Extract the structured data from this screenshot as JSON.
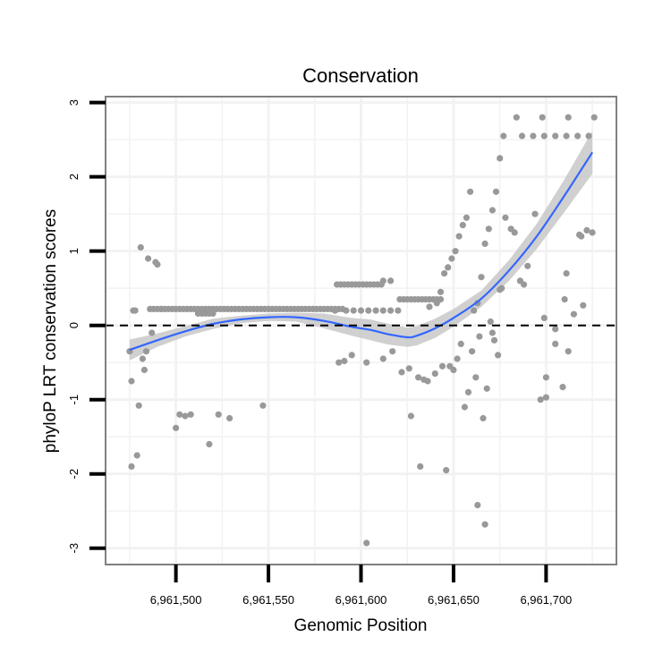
{
  "chart_data": {
    "type": "scatter",
    "title": "Conservation",
    "xlabel": "Genomic Position",
    "ylabel": "phyloP LRT conservation scores",
    "xlim": [
      6961462,
      6961738
    ],
    "ylim": [
      -3.22,
      3.08
    ],
    "x_ticks": [
      6961500,
      6961550,
      6961600,
      6961650,
      6961700
    ],
    "x_tick_labels": [
      "6,961,500",
      "6,961,550",
      "6,961,600",
      "6,961,650",
      "6,961,700"
    ],
    "y_ticks": [
      -3,
      -2,
      -1,
      0,
      1,
      2,
      3
    ],
    "y_tick_labels": [
      "-3",
      "-2",
      "-1",
      "0",
      "1",
      "2",
      "3"
    ],
    "reference_line": {
      "y": 0,
      "style": "dashed"
    },
    "grid": true,
    "colors": {
      "points": "#999999",
      "smooth_line": "#3366ff",
      "confidence_band": "#c8c8c8",
      "panel_border": "#808080",
      "grid": "#f2f2f2",
      "reference_line": "#000000"
    },
    "smooth_fit": {
      "x": [
        6961475,
        6961490,
        6961505,
        6961520,
        6961535,
        6961550,
        6961565,
        6961580,
        6961595,
        6961605,
        6961615,
        6961625,
        6961630,
        6961640,
        6961650,
        6961665,
        6961680,
        6961695,
        6961710,
        6961725
      ],
      "y": [
        -0.33,
        -0.2,
        -0.08,
        0.02,
        0.08,
        0.11,
        0.11,
        0.06,
        -0.02,
        -0.06,
        -0.12,
        -0.16,
        -0.14,
        -0.04,
        0.1,
        0.36,
        0.74,
        1.2,
        1.75,
        2.33
      ],
      "lower": [
        -0.47,
        -0.29,
        -0.15,
        -0.05,
        0.03,
        0.06,
        0.05,
        -0.04,
        -0.14,
        -0.2,
        -0.26,
        -0.29,
        -0.27,
        -0.17,
        -0.02,
        0.25,
        0.6,
        1.03,
        1.53,
        2.04
      ],
      "upper": [
        -0.19,
        -0.11,
        -0.01,
        0.09,
        0.13,
        0.16,
        0.17,
        0.16,
        0.1,
        0.08,
        0.02,
        -0.03,
        -0.01,
        0.09,
        0.22,
        0.47,
        0.88,
        1.37,
        1.97,
        2.62
      ]
    },
    "points": {
      "x": [
        6961475,
        6961476,
        6961477,
        6961479,
        6961481,
        6961482,
        6961483,
        6961485,
        6961487,
        6961489,
        6961490,
        6961492,
        6961476,
        6961478,
        6961480,
        6961484,
        6961486,
        6961488,
        6961490,
        6961492,
        6961494,
        6961496,
        6961498,
        6961500,
        6961502,
        6961504,
        6961506,
        6961508,
        6961510,
        6961512,
        6961514,
        6961516,
        6961518,
        6961520,
        6961522,
        6961524,
        6961526,
        6961528,
        6961530,
        6961532,
        6961534,
        6961536,
        6961538,
        6961540,
        6961542,
        6961544,
        6961546,
        6961548,
        6961550,
        6961552,
        6961554,
        6961556,
        6961558,
        6961560,
        6961562,
        6961564,
        6961566,
        6961568,
        6961570,
        6961572,
        6961574,
        6961576,
        6961578,
        6961580,
        6961582,
        6961584,
        6961586,
        6961588,
        6961590,
        6961512,
        6961514,
        6961516,
        6961518,
        6961520,
        6961500,
        6961502,
        6961505,
        6961508,
        6961518,
        6961523,
        6961529,
        6961547,
        6961587,
        6961589,
        6961591,
        6961593,
        6961595,
        6961597,
        6961599,
        6961601,
        6961603,
        6961605,
        6961607,
        6961609,
        6961611,
        6961612,
        6961616,
        6961621,
        6961623,
        6961625,
        6961627,
        6961629,
        6961631,
        6961633,
        6961635,
        6961637,
        6961639,
        6961641,
        6961643,
        6961586,
        6961592,
        6961596,
        6961600,
        6961604,
        6961608,
        6961612,
        6961616,
        6961620,
        6961588,
        6961591,
        6961595,
        6961603,
        6961612,
        6961617,
        6961622,
        6961626,
        6961631,
        6961634,
        6961636,
        6961640,
        6961644,
        6961632,
        6961627,
        6961646,
        6961603,
        6961637,
        6961641,
        6961643,
        6961645,
        6961647,
        6961649,
        6961651,
        6961653,
        6961655,
        6961657,
        6961659,
        6961661,
        6961663,
        6961665,
        6961667,
        6961669,
        6961671,
        6961673,
        6961675,
        6961648,
        6961650,
        6961652,
        6961654,
        6961656,
        6961658,
        6961660,
        6961662,
        6961664,
        6961666,
        6961668,
        6961670,
        6961672,
        6961674,
        6961663,
        6961667,
        6961671,
        6961676,
        6961678,
        6961681,
        6961683,
        6961686,
        6961688,
        6961694,
        6961699,
        6961705,
        6961711,
        6961718,
        6961697,
        6961700,
        6961705,
        6961709,
        6961712,
        6961715,
        6961719,
        6961722,
        6961675,
        6961690,
        6961700,
        6961710,
        6961720,
        6961725,
        6961677,
        6961687,
        6961693,
        6961699,
        6961705,
        6961711,
        6961717,
        6961723,
        6961684,
        6961698,
        6961712,
        6961726
      ],
      "y": [
        -0.35,
        -0.75,
        0.2,
        -1.75,
        1.05,
        -0.45,
        -0.6,
        0.9,
        -0.1,
        0.85,
        0.82,
        0.22,
        -1.9,
        0.2,
        -1.08,
        -0.35,
        0.22,
        0.22,
        0.22,
        0.22,
        0.22,
        0.22,
        0.22,
        0.22,
        0.22,
        0.22,
        0.22,
        0.22,
        0.22,
        0.22,
        0.22,
        0.22,
        0.22,
        0.22,
        0.22,
        0.22,
        0.22,
        0.22,
        0.22,
        0.22,
        0.22,
        0.22,
        0.22,
        0.22,
        0.22,
        0.22,
        0.22,
        0.22,
        0.22,
        0.22,
        0.22,
        0.22,
        0.22,
        0.22,
        0.22,
        0.22,
        0.22,
        0.22,
        0.22,
        0.22,
        0.22,
        0.22,
        0.22,
        0.22,
        0.22,
        0.22,
        0.22,
        0.22,
        0.22,
        0.16,
        0.16,
        0.16,
        0.16,
        0.16,
        -1.38,
        -1.2,
        -1.22,
        -1.2,
        -1.6,
        -1.2,
        -1.25,
        -1.08,
        0.55,
        0.55,
        0.55,
        0.55,
        0.55,
        0.55,
        0.55,
        0.55,
        0.55,
        0.55,
        0.55,
        0.55,
        0.55,
        0.6,
        0.6,
        0.35,
        0.35,
        0.35,
        0.35,
        0.35,
        0.35,
        0.35,
        0.35,
        0.35,
        0.35,
        0.35,
        0.35,
        0.2,
        0.2,
        0.2,
        0.2,
        0.2,
        0.2,
        0.2,
        0.2,
        0.2,
        -0.5,
        -0.48,
        -0.4,
        -0.5,
        -0.45,
        -0.35,
        -0.63,
        -0.58,
        -0.7,
        -0.73,
        -0.75,
        -0.65,
        -0.55,
        -1.9,
        -1.22,
        -1.95,
        -2.93,
        0.25,
        0.3,
        0.45,
        0.7,
        0.78,
        0.9,
        1.0,
        1.2,
        1.35,
        1.45,
        1.8,
        0.2,
        0.3,
        0.65,
        1.1,
        1.3,
        1.55,
        1.8,
        2.25,
        -0.55,
        -0.6,
        -0.45,
        -0.25,
        -1.1,
        -0.9,
        -0.35,
        -0.7,
        -0.15,
        -1.25,
        -0.85,
        0.05,
        -0.2,
        -0.4,
        -2.42,
        -2.68,
        -0.1,
        0.5,
        1.45,
        1.3,
        1.25,
        0.6,
        0.55,
        1.5,
        0.1,
        -0.25,
        0.7,
        1.22,
        -1.0,
        -0.97,
        -0.05,
        -0.83,
        -0.35,
        0.15,
        1.2,
        1.28,
        0.48,
        0.8,
        -0.7,
        0.35,
        0.27,
        1.25,
        2.55,
        2.55,
        2.55,
        2.55,
        2.55,
        2.55,
        2.55,
        2.55,
        2.8,
        2.8,
        2.8,
        2.8
      ]
    }
  }
}
